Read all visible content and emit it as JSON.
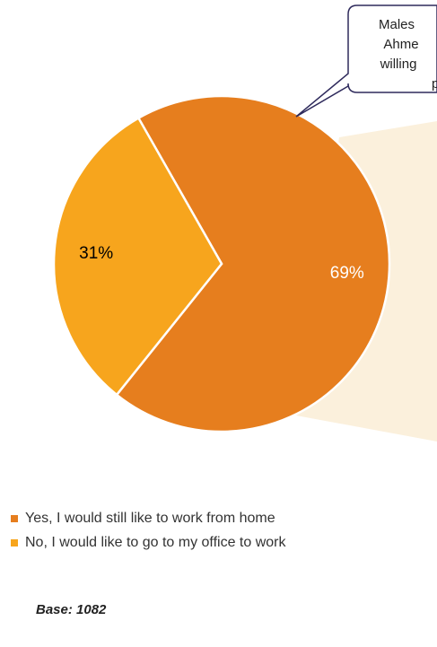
{
  "chart_data": {
    "type": "pie",
    "categories": [
      "Yes, I would still like to work from home",
      "No, I would like to go to my office to work"
    ],
    "values": [
      69,
      31
    ],
    "value_labels": [
      "69%",
      "31%"
    ],
    "colors": [
      "#e67e1e",
      "#f7a51d"
    ],
    "label_colors": [
      "#ffffff",
      "#000000"
    ],
    "annotation": [
      "Males",
      "Ahme",
      "willing",
      "p"
    ],
    "footnote": "Base: 1082"
  }
}
